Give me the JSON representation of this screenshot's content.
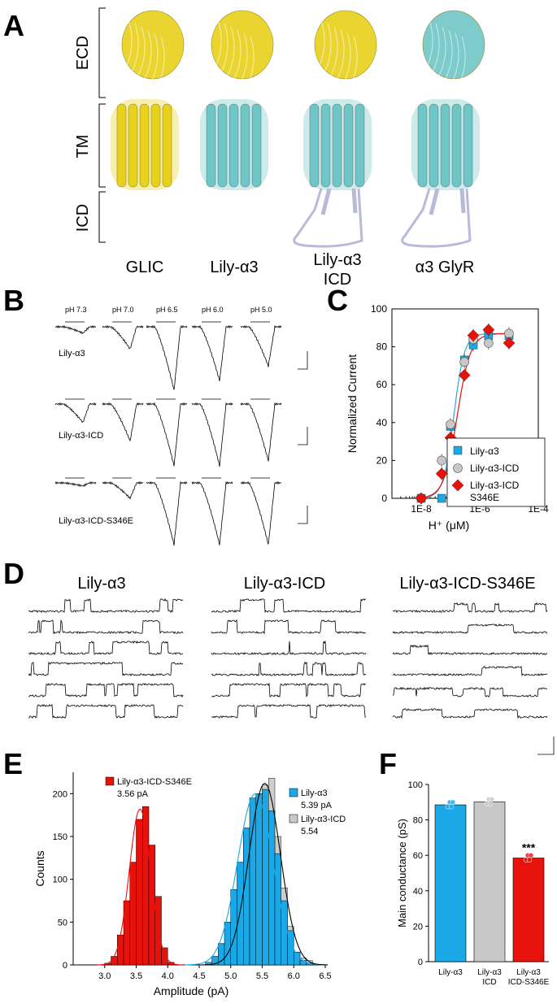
{
  "panels": {
    "A": "A",
    "B": "B",
    "C": "C",
    "D": "D",
    "E": "E",
    "F": "F"
  },
  "colors": {
    "gold": "#e8d11a",
    "cyan": "#6fc6c6",
    "lavender": "#b9bad9",
    "lily": "#1aa9e6",
    "icd": "#c8c8c8",
    "s346e": "#e8120c",
    "lily_fit": "#2aa8d8",
    "s346e_fit": "#e8120c"
  },
  "panelA": {
    "domain_labels": [
      "ECD",
      "TM",
      "ICD"
    ],
    "structure_names": [
      "GLIC",
      "Lily-α3",
      "Lily-α3\nICD",
      "α3 GlyR"
    ],
    "structure_names_lines": [
      [
        "GLIC"
      ],
      [
        "Lily-α3"
      ],
      [
        "Lily-α3",
        "ICD"
      ],
      [
        "α3 GlyR"
      ]
    ],
    "structures": [
      {
        "ecd": "gold",
        "tm": "gold",
        "icd": "none"
      },
      {
        "ecd": "gold",
        "tm": "cyan",
        "icd": "none"
      },
      {
        "ecd": "gold",
        "tm": "cyan",
        "icd": "lavender"
      },
      {
        "ecd": "cyan",
        "tm": "cyan",
        "icd": "lavender"
      }
    ]
  },
  "panelB": {
    "ph_labels": [
      "pH 7.3",
      "pH 7.0",
      "pH 6.5",
      "pH 6.0",
      "pH 5.0"
    ],
    "rows": [
      {
        "label": "Lily-α3",
        "depths": [
          0.1,
          0.35,
          1.0,
          0.85,
          0.62
        ]
      },
      {
        "label": "Lily-α3-ICD",
        "depths": [
          0.3,
          0.6,
          1.0,
          1.0,
          0.92
        ]
      },
      {
        "label": "Lily-α3-ICD-S346E",
        "depths": [
          0.05,
          0.25,
          1.0,
          1.0,
          1.0
        ]
      }
    ]
  },
  "chart_data": [
    {
      "type": "scatter",
      "panel": "C",
      "ylabel": "Normalized Current",
      "xlabel": "H⁺ (μM)",
      "xscale": "log",
      "xticks": [
        "1E-8",
        "1E-6",
        "1E-4"
      ],
      "xlim": [
        1e-09,
        0.0001
      ],
      "ylim": [
        0,
        100
      ],
      "yticks": [
        0,
        20,
        40,
        60,
        80,
        100
      ],
      "series": [
        {
          "name": "Lily-α3",
          "marker": "square",
          "color": "#1aa9e6",
          "x": [
            1e-08,
            5e-08,
            1e-07,
            3e-07,
            6e-07,
            2e-06,
            1e-05
          ],
          "y": [
            0,
            0,
            38,
            73,
            81,
            86,
            86
          ]
        },
        {
          "name": "Lily-α3-ICD",
          "marker": "circle",
          "color": "#c8c8c8",
          "x": [
            1e-08,
            5e-08,
            1e-07,
            3e-07,
            6e-07,
            2e-06,
            1e-05
          ],
          "y": [
            0,
            20,
            39,
            72,
            84,
            82,
            87
          ]
        },
        {
          "name": "Lily-α3-ICD\nS346E",
          "name_lines": [
            "Lily-α3-ICD",
            "S346E"
          ],
          "marker": "diamond",
          "color": "#e8120c",
          "x": [
            1e-08,
            5e-08,
            1e-07,
            3e-07,
            6e-07,
            2e-06,
            1e-05
          ],
          "y": [
            0,
            13,
            32,
            65,
            86,
            89,
            82
          ]
        }
      ]
    },
    {
      "type": "bar",
      "panel": "E",
      "xlabel": "Amplitude (pA)",
      "ylabel": "Counts",
      "xlim": [
        2.5,
        6.5
      ],
      "ylim": [
        0,
        225
      ],
      "xticks": [
        3.0,
        3.5,
        4.0,
        4.5,
        5.0,
        5.5,
        6.0,
        6.5
      ],
      "yticks": [
        0,
        50,
        100,
        150,
        200
      ],
      "bin_width": 0.1,
      "series": [
        {
          "name": "Lily-α3-ICD-S346E",
          "annotation": "3.56 pA",
          "color": "#e8120c",
          "bin_start": [
            3.0,
            3.1,
            3.2,
            3.3,
            3.4,
            3.5,
            3.6,
            3.7,
            3.8,
            3.9,
            4.0
          ],
          "values": [
            2,
            10,
            35,
            75,
            120,
            170,
            185,
            140,
            80,
            20,
            3
          ]
        },
        {
          "name": "Lily-α3",
          "annotation": "5.39 pA",
          "color": "#1aa9e6",
          "bin_start": [
            4.6,
            4.7,
            4.8,
            4.9,
            5.0,
            5.1,
            5.2,
            5.3,
            5.4,
            5.5,
            5.6,
            5.7,
            5.8,
            5.9,
            6.0,
            6.1,
            6.2
          ],
          "values": [
            3,
            10,
            25,
            50,
            88,
            120,
            160,
            195,
            200,
            205,
            180,
            130,
            75,
            40,
            15,
            5,
            2
          ]
        },
        {
          "name": "Lily-α3-ICD",
          "annotation": "5.54",
          "color": "#c8c8c8",
          "bin_start": [
            5.1,
            5.2,
            5.3,
            5.4,
            5.5,
            5.6,
            5.7,
            5.8,
            5.9,
            6.0,
            6.1,
            6.2
          ],
          "values": [
            60,
            90,
            140,
            170,
            210,
            218,
            150,
            90,
            45,
            15,
            8,
            5
          ]
        }
      ]
    },
    {
      "type": "bar",
      "panel": "F",
      "ylabel": "Main conductance (pS)",
      "ylim": [
        0,
        100
      ],
      "yticks": [
        0,
        20,
        40,
        60,
        80,
        100
      ],
      "categories": [
        "Lily-α3",
        "Lily-α3\nICD",
        "Lily-α3\nICD-S346E"
      ],
      "category_lines": [
        [
          "Lily-α3"
        ],
        [
          "Lily-α3",
          "ICD"
        ],
        [
          "Lily-α3",
          "ICD-S346E"
        ]
      ],
      "values": [
        88.5,
        90.2,
        58.5
      ],
      "colors": [
        "#1aa9e6",
        "#c8c8c8",
        "#e8120c"
      ],
      "annotations": [
        "",
        "",
        "***"
      ]
    }
  ],
  "panelD": {
    "titles": [
      "Lily-α3",
      "Lily-α3-ICD",
      "Lily-α3-ICD-S346E"
    ]
  }
}
